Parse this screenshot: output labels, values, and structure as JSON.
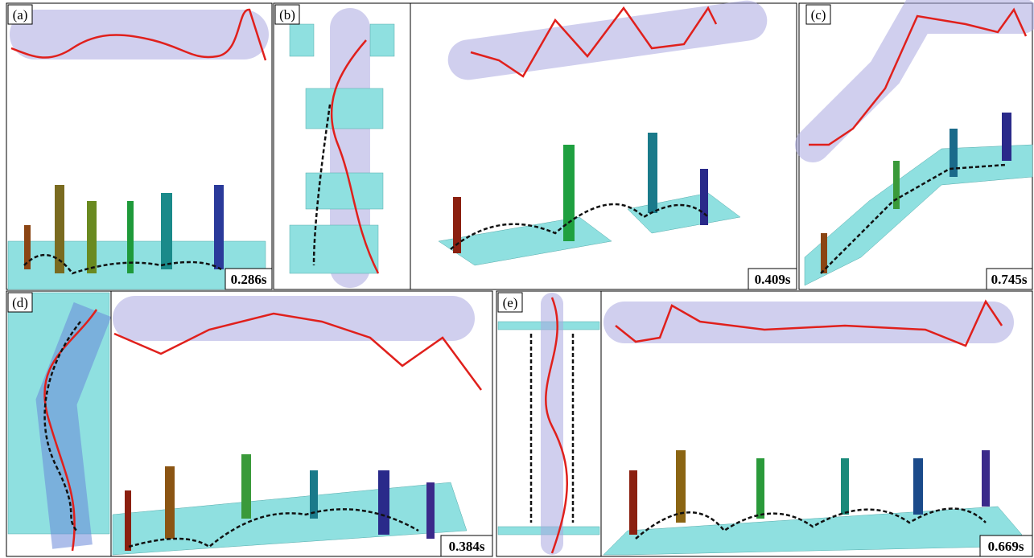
{
  "panels": [
    {
      "label": "(a)",
      "time": "0.286s"
    },
    {
      "label": "(b)",
      "time": "0.409s"
    },
    {
      "label": "(c)",
      "time": "0.745s"
    },
    {
      "label": "(d)",
      "time": "0.384s"
    },
    {
      "label": "(e)",
      "time": "0.669s"
    }
  ]
}
